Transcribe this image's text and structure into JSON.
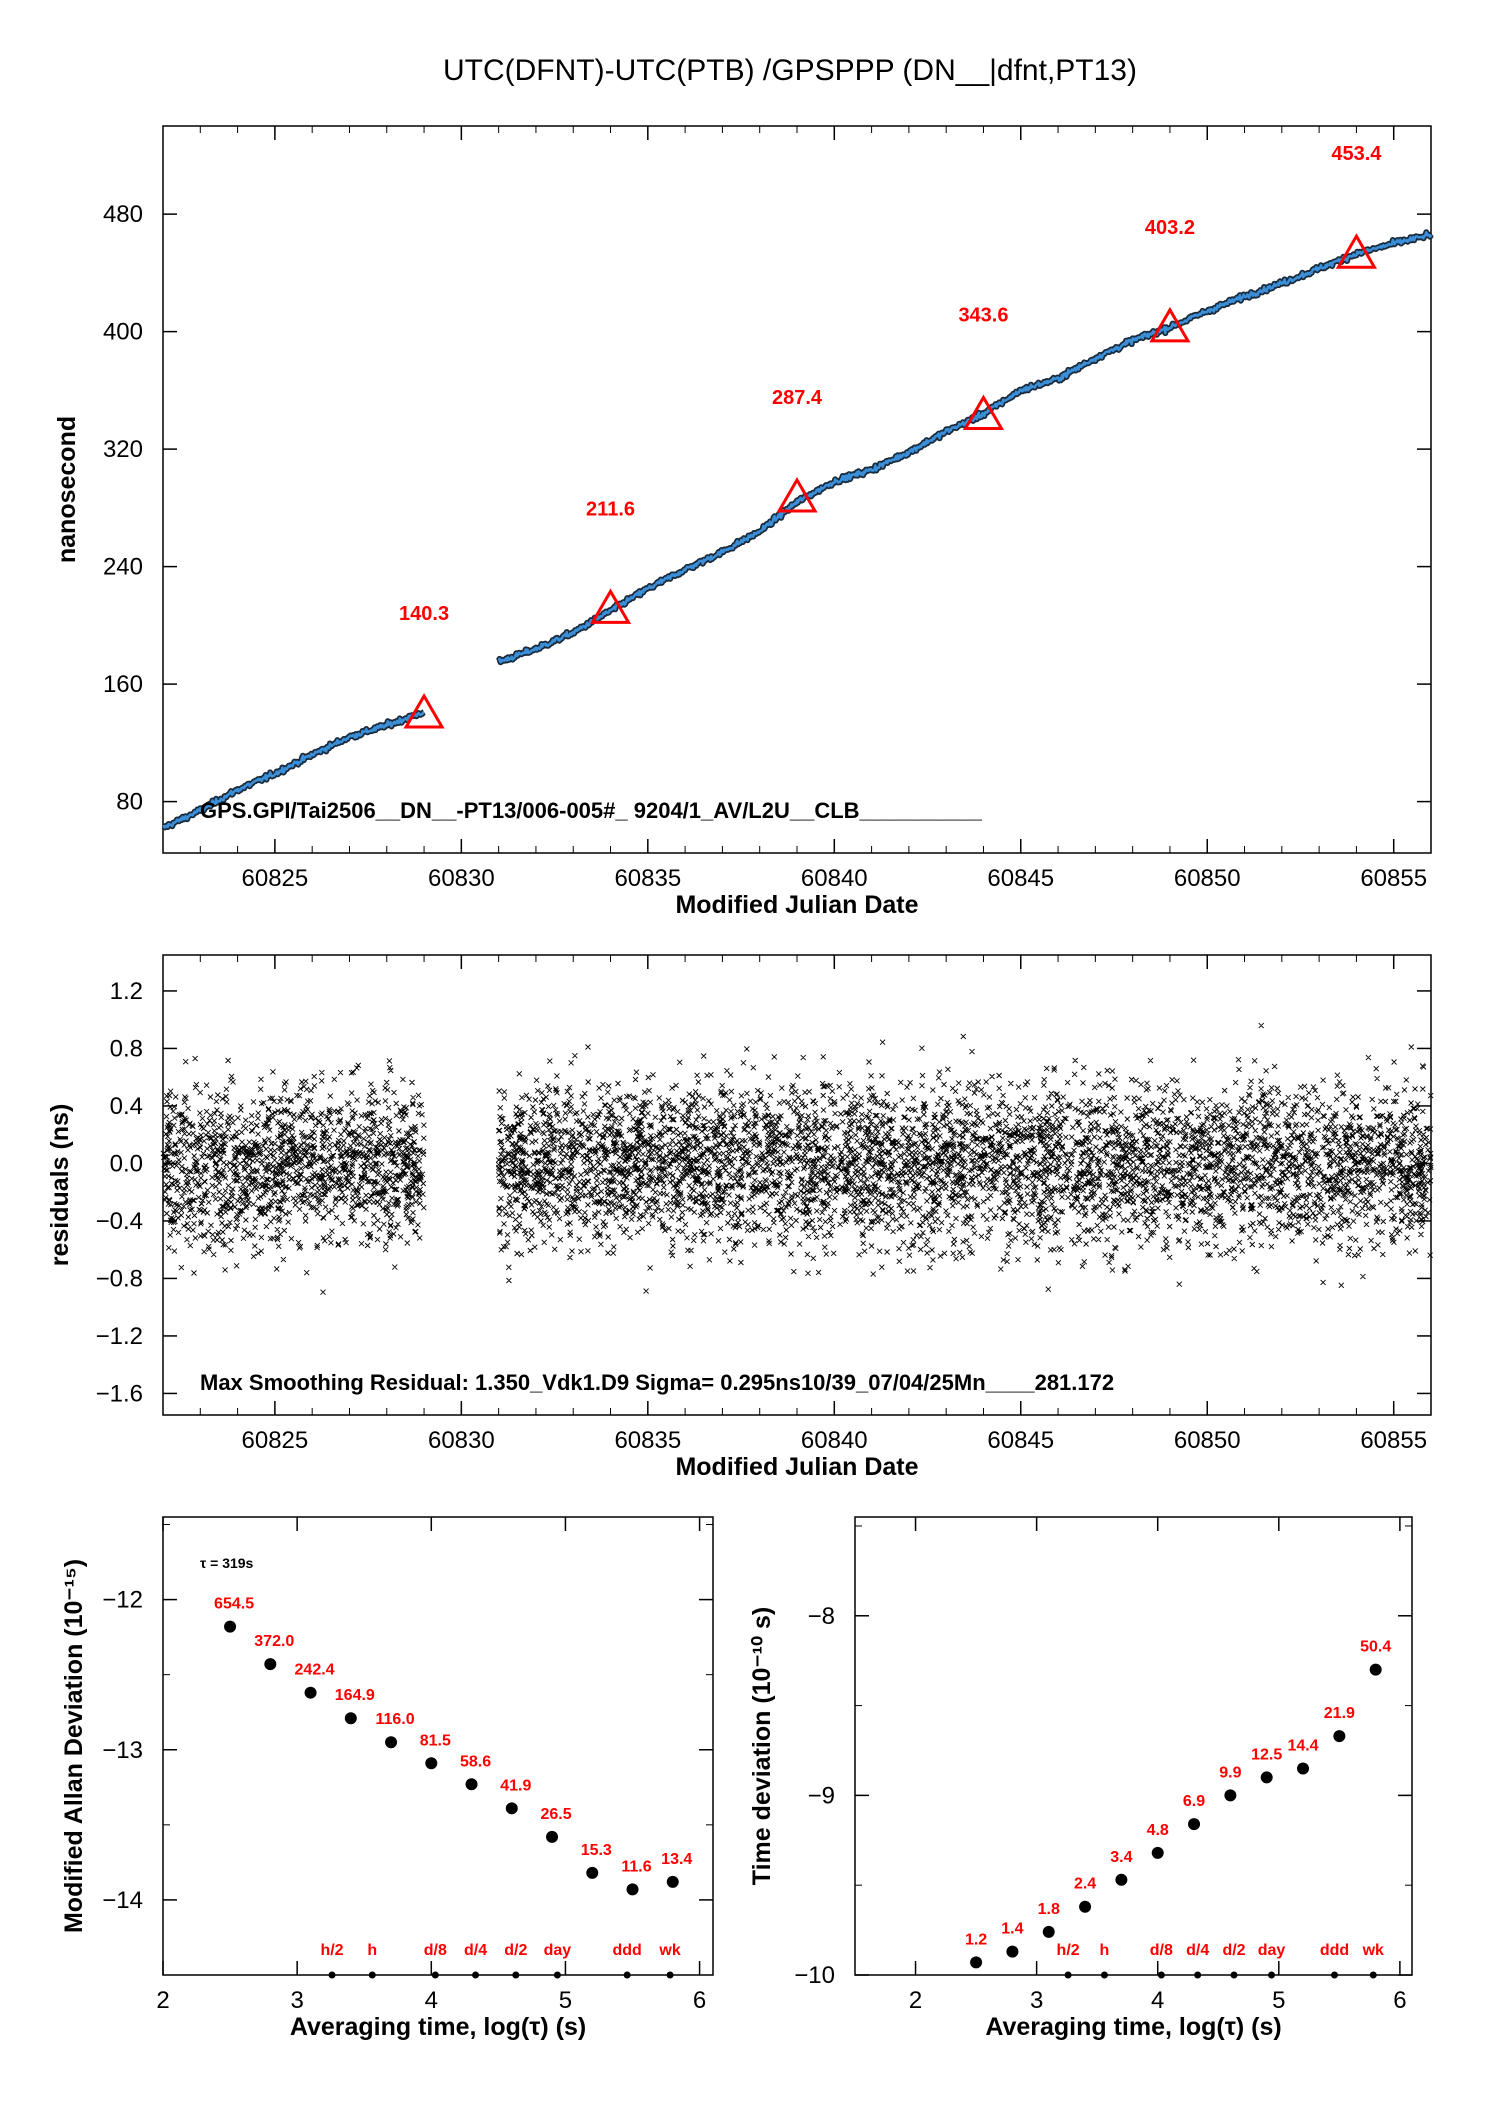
{
  "title": "UTC(DFNT)-UTC(PTB)  /GPSPPP  (DN__|dfnt,PT13)",
  "colors": {
    "series": "#3a8fd8",
    "triangle": "#ff0000",
    "label": "#ff0000",
    "residual": "#000000"
  },
  "chart_data": [
    {
      "type": "line",
      "xlabel": "Modified Julian Date",
      "ylabel": "nanosecond",
      "xlim": [
        60822,
        60856
      ],
      "ylim": [
        45,
        540
      ],
      "xticks": [
        60825,
        60830,
        60835,
        60840,
        60845,
        60850,
        60855
      ],
      "yticks": [
        80,
        160,
        240,
        320,
        400,
        480
      ],
      "info_text": "GPS.GPI/Tai2506__DN__-PT13/006-005#_  9204/1_AV/L2U__CLB__________",
      "series": [
        {
          "x": [
            60822.0,
            60823.0,
            60824.0,
            60825.0,
            60826.0,
            60827.0,
            60828.0,
            60829.0
          ],
          "y": [
            62,
            74,
            88,
            99,
            112,
            124,
            132,
            141
          ]
        },
        {
          "x": [
            60831.0,
            60832.0,
            60833.0,
            60834.0,
            60835.0,
            60836.0,
            60837.0,
            60838.0,
            60839.0,
            60840.0,
            60841.0,
            60842.0,
            60843.0,
            60844.0,
            60845.0,
            60846.0,
            60847.0,
            60848.0,
            60849.0,
            60850.0,
            60851.0,
            60852.0,
            60853.0,
            60854.0,
            60855.0,
            60856.0
          ],
          "y": [
            175,
            184,
            195,
            210,
            225,
            238,
            250,
            264,
            284,
            298,
            306,
            318,
            332,
            344,
            360,
            368,
            382,
            394,
            403,
            414,
            424,
            433,
            443,
            453,
            460,
            466
          ]
        }
      ],
      "markers": [
        {
          "x": 60829.0,
          "y": 140.3,
          "label": "140.3"
        },
        {
          "x": 60834.0,
          "y": 211.6,
          "label": "211.6"
        },
        {
          "x": 60839.0,
          "y": 287.4,
          "label": "287.4"
        },
        {
          "x": 60844.0,
          "y": 343.6,
          "label": "343.6"
        },
        {
          "x": 60849.0,
          "y": 403.2,
          "label": "403.2"
        },
        {
          "x": 60854.0,
          "y": 453.4,
          "label": "453.4"
        }
      ]
    },
    {
      "type": "scatter",
      "xlabel": "Modified Julian Date",
      "ylabel": "residuals (ns)",
      "xlim": [
        60822,
        60856
      ],
      "ylim": [
        -1.75,
        1.45
      ],
      "xticks": [
        60825,
        60830,
        60835,
        60840,
        60845,
        60850,
        60855
      ],
      "yticks": [
        -1.6,
        -1.2,
        -0.8,
        -0.4,
        0.0,
        0.4,
        0.8,
        1.2
      ],
      "ytick_labels": [
        "−1.6",
        "−1.2",
        "−0.8",
        "−0.4",
        "0.0",
        "0.4",
        "0.8",
        "1.2"
      ],
      "segments": [
        [
          60822.0,
          60829.0
        ],
        [
          60831.0,
          60856.0
        ]
      ],
      "sigma": 0.295,
      "max_residual": 1.35,
      "info_text": "Max Smoothing Residual: 1.350_Vdk1.D9  Sigma= 0.295ns10/39_07/04/25Mn____281.172"
    },
    {
      "type": "scatter",
      "xlabel": "Averaging time, log(τ) (s)",
      "ylabel": "Modified Allan Deviation (10⁻¹⁵)",
      "xlim": [
        2,
        6.1
      ],
      "ylim": [
        -14.5,
        -11.45
      ],
      "xticks": [
        2,
        3,
        4,
        5,
        6
      ],
      "yticks": [
        -14,
        -13,
        -12
      ],
      "ytick_labels": [
        "−14",
        "−13",
        "−12"
      ],
      "tau_note": "τ = 319s",
      "x": [
        2.5,
        2.8,
        3.1,
        3.4,
        3.7,
        4.0,
        4.3,
        4.6,
        4.9,
        5.2,
        5.5,
        5.8
      ],
      "y": [
        -12.18,
        -12.43,
        -12.62,
        -12.79,
        -12.95,
        -13.09,
        -13.23,
        -13.39,
        -13.58,
        -13.82,
        -13.93,
        -13.88
      ],
      "point_labels": [
        "654.5",
        "372.0",
        "242.4",
        "164.9",
        "116.0",
        "81.5",
        "58.6",
        "41.9",
        "26.5",
        "15.3",
        "11.6",
        "13.4"
      ],
      "marker_x": [
        3.26,
        3.56,
        4.03,
        4.33,
        4.63,
        4.94,
        5.46,
        5.78
      ],
      "marker_labels": [
        "h/2",
        "h",
        "d/8",
        "d/4",
        "d/2",
        "day",
        "ddd",
        "wk"
      ]
    },
    {
      "type": "scatter",
      "xlabel": "Averaging time, log(τ) (s)",
      "ylabel": "Time deviation (10⁻¹⁰ s)",
      "xlim": [
        1.5,
        6.1
      ],
      "ylim": [
        -10,
        -7.45
      ],
      "xticks": [
        2,
        3,
        4,
        5,
        6
      ],
      "yticks": [
        -10,
        -9,
        -8
      ],
      "ytick_labels": [
        "−10",
        "−9",
        "−8"
      ],
      "x": [
        2.5,
        2.8,
        3.1,
        3.4,
        3.7,
        4.0,
        4.3,
        4.6,
        4.9,
        5.2,
        5.5,
        5.8
      ],
      "y": [
        -9.93,
        -9.87,
        -9.76,
        -9.62,
        -9.47,
        -9.32,
        -9.16,
        -9.0,
        -8.9,
        -8.85,
        -8.67,
        -8.3
      ],
      "point_labels": [
        "1.2",
        "1.4",
        "1.8",
        "2.4",
        "3.4",
        "4.8",
        "6.9",
        "9.9",
        "12.5",
        "14.4",
        "21.9",
        "50.4"
      ],
      "marker_x": [
        3.26,
        3.56,
        4.03,
        4.33,
        4.63,
        4.94,
        5.46,
        5.78
      ],
      "marker_labels": [
        "h/2",
        "h",
        "d/8",
        "d/4",
        "d/2",
        "day",
        "ddd",
        "wk"
      ]
    }
  ]
}
